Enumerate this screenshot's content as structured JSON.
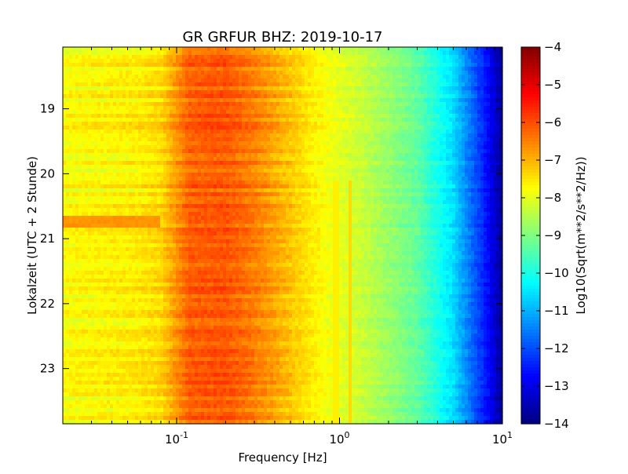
{
  "chart_data": {
    "type": "heatmap",
    "title": "GR GRFUR BHZ: 2019-10-17",
    "xlabel": "Frequency [Hz]",
    "ylabel": "Lokalzeit (UTC + 2 Stunde)",
    "x_scale": "log",
    "xlim": [
      0.02,
      10
    ],
    "ylim": [
      18.05,
      23.85
    ],
    "x_ticks": [
      {
        "value": 0.1,
        "base": "10",
        "exp": "-1"
      },
      {
        "value": 1,
        "base": "10",
        "exp": "0"
      },
      {
        "value": 10,
        "base": "10",
        "exp": "1"
      }
    ],
    "y_ticks": [
      {
        "value": 19,
        "label": "19"
      },
      {
        "value": 20,
        "label": "20"
      },
      {
        "value": 21,
        "label": "21"
      },
      {
        "value": 22,
        "label": "22"
      },
      {
        "value": 23,
        "label": "23"
      }
    ],
    "y_inverted": true,
    "colorbar": {
      "label": "Log10(Sqrt(m**2/s**2/Hz))",
      "colormap": "jet",
      "range": [
        -14,
        -4
      ],
      "ticks": [
        {
          "value": -4,
          "label": "−4"
        },
        {
          "value": -5,
          "label": "−5"
        },
        {
          "value": -6,
          "label": "−6"
        },
        {
          "value": -7,
          "label": "−7"
        },
        {
          "value": -8,
          "label": "−8"
        },
        {
          "value": -9,
          "label": "−9"
        },
        {
          "value": -10,
          "label": "−10"
        },
        {
          "value": -11,
          "label": "−11"
        },
        {
          "value": -12,
          "label": "−12"
        },
        {
          "value": -13,
          "label": "−13"
        },
        {
          "value": -14,
          "label": "−14"
        }
      ]
    },
    "spectrum_profile": [
      {
        "freq": 0.02,
        "value": -7.8
      },
      {
        "freq": 0.06,
        "value": -7.6
      },
      {
        "freq": 0.08,
        "value": -7.4
      },
      {
        "freq": 0.12,
        "value": -6.2
      },
      {
        "freq": 0.2,
        "value": -6.1
      },
      {
        "freq": 0.3,
        "value": -6.5
      },
      {
        "freq": 0.5,
        "value": -7.2
      },
      {
        "freq": 0.8,
        "value": -7.8
      },
      {
        "freq": 1.5,
        "value": -8.4
      },
      {
        "freq": 3,
        "value": -9.3
      },
      {
        "freq": 5,
        "value": -10.6
      },
      {
        "freq": 8,
        "value": -12.6
      },
      {
        "freq": 10,
        "value": -13.8
      }
    ],
    "features": [
      {
        "type": "band",
        "freq_from": 0.02,
        "freq_to": 0.08,
        "time_from": 20.65,
        "time_to": 20.85,
        "value": -6.7
      },
      {
        "type": "line",
        "freq": 0.95,
        "time_from": 20.1,
        "time_to": 23.85,
        "value": -7.6
      },
      {
        "type": "line",
        "freq": 1.18,
        "time_from": 20.1,
        "time_to": 23.85,
        "value": -7.4
      }
    ]
  }
}
